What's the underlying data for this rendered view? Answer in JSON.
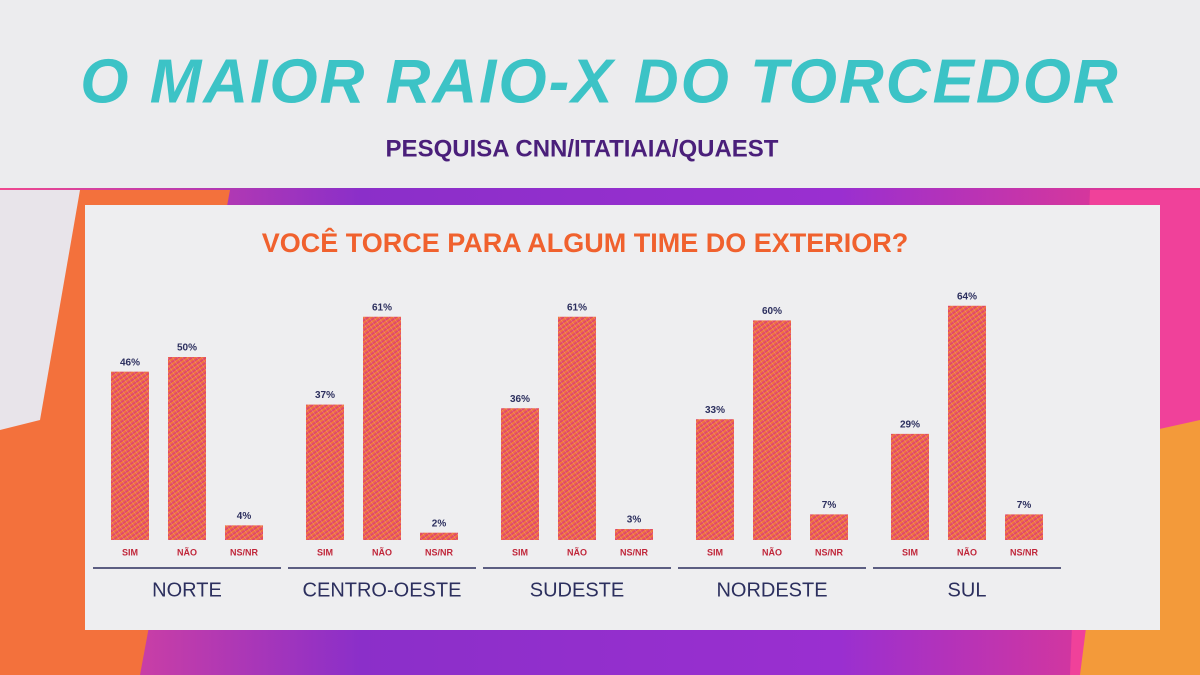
{
  "header": {
    "title": "O MAIOR RAIO-X DO TORCEDOR",
    "subtitle": "PESQUISA CNN/ITATIAIA/QUAEST"
  },
  "chart_data": {
    "type": "bar",
    "title": "VOCÊ TORCE PARA ALGUM TIME DO EXTERIOR?",
    "categories": [
      "NORTE",
      "CENTRO-OESTE",
      "SUDESTE",
      "NORDESTE",
      "SUL"
    ],
    "series": [
      {
        "name": "SIM",
        "values": [
          46,
          37,
          36,
          33,
          29
        ],
        "value_labels": [
          "46%",
          "37%",
          "36%",
          "33%",
          "29%"
        ]
      },
      {
        "name": "NÃO",
        "values": [
          50,
          61,
          61,
          60,
          64
        ],
        "value_labels": [
          "50%",
          "61%",
          "61%",
          "60%",
          "64%"
        ]
      },
      {
        "name": "NS/NR",
        "values": [
          4,
          2,
          3,
          7,
          7
        ],
        "value_labels": [
          "4%",
          "2%",
          "3%",
          "7%",
          "7%"
        ]
      }
    ]
  }
}
